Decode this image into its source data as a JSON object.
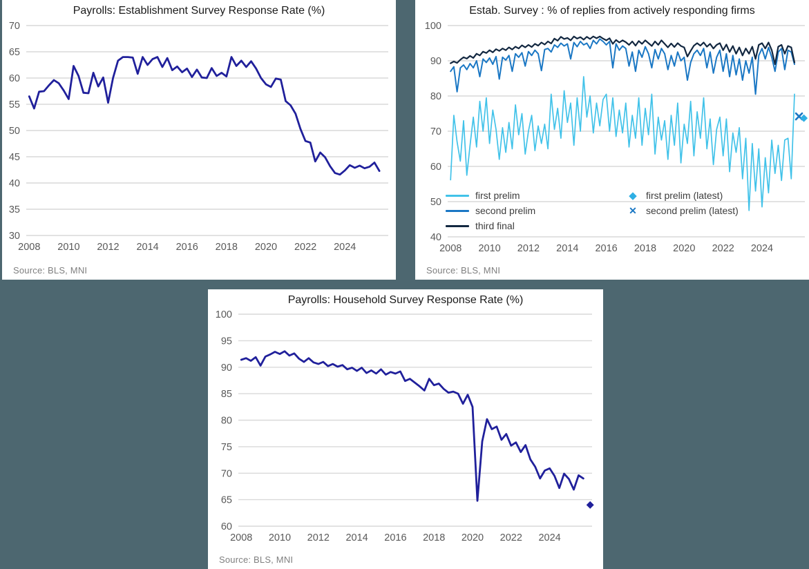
{
  "page": {
    "background_color": "#4d6770",
    "panel_color": "#ffffff"
  },
  "styles": {
    "grid_color": "#d9d9d9",
    "tick_color": "#595959",
    "title_color": "#1a1a1a",
    "source_color": "#7f7f7f",
    "legend_text_color": "#3d3d3d",
    "navy_line": "#20209b",
    "third_final_line": "#122740",
    "second_prelim_line": "#1a77c4",
    "first_prelim_line": "#41c2e9"
  },
  "chart_data": [
    {
      "id": "establishment-response-rate",
      "type": "line",
      "title": "Payrolls: Establishment Survey Response Rate (%)",
      "source": "Source: BLS, MNI",
      "xlabel": "",
      "ylabel": "",
      "grid": true,
      "ylim": [
        30,
        70
      ],
      "ytick_step": 5,
      "xlim": [
        2007.85,
        2026.2
      ],
      "xticks": [
        2008,
        2010,
        2012,
        2014,
        2016,
        2018,
        2020,
        2022,
        2024
      ],
      "x_start": 2008.0,
      "x_step": 0.25,
      "series": [
        {
          "name": "establishment survey response rate",
          "color": "#20209b",
          "line_width": 2.8,
          "values": [
            56.5,
            54.2,
            57.4,
            57.5,
            58.6,
            59.6,
            59.0,
            57.6,
            56.0,
            62.3,
            60.4,
            57.2,
            57.1,
            61.0,
            58.4,
            60.1,
            55.3,
            60.0,
            63.3,
            64.0,
            64.0,
            63.9,
            60.8,
            64.0,
            62.5,
            63.6,
            64.0,
            62.1,
            63.8,
            61.5,
            62.2,
            61.1,
            61.8,
            60.2,
            61.6,
            60.1,
            60.0,
            61.9,
            60.4,
            61.0,
            60.3,
            64.0,
            62.3,
            63.3,
            62.1,
            63.2,
            61.8,
            60.0,
            58.8,
            58.3,
            59.9,
            59.7,
            55.6,
            54.8,
            53.2,
            50.3,
            48.0,
            47.7,
            44.1,
            45.8,
            44.9,
            43.2,
            41.9,
            41.6,
            42.4,
            43.4,
            42.9,
            43.3,
            42.8,
            43.1,
            43.9,
            42.3
          ]
        }
      ],
      "markers": []
    },
    {
      "id": "replies-from-actively-responding-firms",
      "type": "line",
      "title": "Estab. Survey : % of replies from actively responding firms",
      "source": "Source: BLS, MNI",
      "xlabel": "",
      "ylabel": "",
      "grid": true,
      "legend_position": "bottom-left-two-columns",
      "ylim": [
        40,
        100
      ],
      "ytick_step": 10,
      "xlim": [
        2007.85,
        2026.2
      ],
      "xticks": [
        2008,
        2010,
        2012,
        2014,
        2016,
        2018,
        2020,
        2022,
        2024
      ],
      "x_start": 2008.0,
      "x_step": 0.1666667,
      "series": [
        {
          "name": "first prelim",
          "color": "#41c2e9",
          "line_width": 1.7,
          "values": [
            56.2,
            74.5,
            67.0,
            61.5,
            73.0,
            57.5,
            66.0,
            74.0,
            65.5,
            78.5,
            70.0,
            79.5,
            66.5,
            76.0,
            70.5,
            62.0,
            71.0,
            64.0,
            72.5,
            65.0,
            77.5,
            69.0,
            75.0,
            63.5,
            70.0,
            74.5,
            64.5,
            71.5,
            66.5,
            72.0,
            65.0,
            80.5,
            70.5,
            76.5,
            68.0,
            81.5,
            72.5,
            78.0,
            66.0,
            79.5,
            70.0,
            85.5,
            74.0,
            80.0,
            69.5,
            78.0,
            71.5,
            79.0,
            80.5,
            70.0,
            79.5,
            68.5,
            76.0,
            69.5,
            78.0,
            65.5,
            74.5,
            68.0,
            79.5,
            66.0,
            76.5,
            69.0,
            80.5,
            63.5,
            74.0,
            67.5,
            73.0,
            62.0,
            74.5,
            66.0,
            78.0,
            61.0,
            72.0,
            66.5,
            78.5,
            63.0,
            75.5,
            68.0,
            79.5,
            65.0,
            73.5,
            60.5,
            70.5,
            74.0,
            63.0,
            73.5,
            58.5,
            69.5,
            64.0,
            71.0,
            56.5,
            68.0,
            47.5,
            66.5,
            53.0,
            65.0,
            48.5,
            62.5,
            52.5,
            67.5,
            58.0,
            66.0,
            56.0,
            67.5,
            68.0,
            56.5,
            80.5
          ]
        },
        {
          "name": "second prelim",
          "color": "#1a77c4",
          "line_width": 2.0,
          "values": [
            87.0,
            88.3,
            81.2,
            88.0,
            88.8,
            87.5,
            89.2,
            88.0,
            90.0,
            85.5,
            90.5,
            89.5,
            90.8,
            89.0,
            91.2,
            84.8,
            91.0,
            90.2,
            91.5,
            87.0,
            92.0,
            91.0,
            92.3,
            88.5,
            92.6,
            91.5,
            93.0,
            92.0,
            87.2,
            93.2,
            93.5,
            92.5,
            94.5,
            93.8,
            95.0,
            94.2,
            94.8,
            90.5,
            95.2,
            94.0,
            95.5,
            94.5,
            95.0,
            93.5,
            95.8,
            94.8,
            96.2,
            95.5,
            94.5,
            95.5,
            88.0,
            94.8,
            93.0,
            94.2,
            93.5,
            88.5,
            92.5,
            87.0,
            93.0,
            91.0,
            94.0,
            92.0,
            88.0,
            93.2,
            90.5,
            93.5,
            92.0,
            87.5,
            91.5,
            88.5,
            92.5,
            90.0,
            91.0,
            84.5,
            89.5,
            92.0,
            93.0,
            91.5,
            93.5,
            88.0,
            92.5,
            86.5,
            91.0,
            93.0,
            87.0,
            92.0,
            85.5,
            91.5,
            86.0,
            90.5,
            84.5,
            90.0,
            86.5,
            91.0,
            80.5,
            91.5,
            93.5,
            90.5,
            93.8,
            91.0,
            87.0,
            92.5,
            93.5,
            87.5,
            93.0,
            92.5,
            89.0
          ]
        },
        {
          "name": "third final",
          "color": "#122740",
          "line_width": 2.2,
          "values": [
            89.3,
            89.8,
            89.4,
            90.3,
            91.0,
            90.6,
            91.4,
            90.8,
            92.0,
            91.5,
            92.6,
            92.2,
            93.0,
            92.4,
            93.3,
            92.8,
            93.5,
            93.0,
            93.8,
            93.2,
            94.0,
            93.5,
            94.4,
            93.8,
            94.5,
            93.9,
            94.8,
            94.3,
            95.2,
            94.6,
            95.5,
            94.9,
            96.3,
            95.7,
            96.8,
            96.2,
            96.5,
            95.8,
            96.9,
            96.3,
            96.7,
            96.0,
            96.8,
            96.2,
            96.9,
            96.4,
            96.9,
            96.3,
            95.8,
            96.4,
            94.8,
            95.9,
            95.2,
            95.8,
            95.3,
            94.5,
            95.5,
            94.3,
            95.6,
            94.8,
            95.8,
            95.0,
            94.2,
            95.5,
            94.5,
            95.8,
            94.8,
            93.8,
            94.9,
            93.9,
            95.0,
            94.2,
            93.8,
            91.2,
            92.8,
            94.3,
            95.0,
            94.3,
            95.2,
            94.0,
            94.8,
            93.5,
            94.5,
            95.0,
            93.0,
            94.6,
            92.5,
            94.2,
            92.0,
            93.8,
            91.5,
            93.5,
            92.0,
            94.0,
            90.5,
            94.5,
            95.0,
            93.5,
            95.2,
            93.0,
            89.0,
            94.0,
            94.5,
            92.0,
            94.2,
            93.8,
            89.5
          ]
        }
      ],
      "markers": [
        {
          "name": "second prelim (latest)",
          "shape": "x",
          "color": "#1a77c4",
          "x": 2025.9,
          "y": 74.2
        },
        {
          "name": "first prelim (latest)",
          "shape": "diamond",
          "color": "#2fafe4",
          "x": 2026.15,
          "y": 73.7
        }
      ],
      "legend": [
        {
          "label": "first prelim",
          "marker": "line",
          "color": "#41c2e9"
        },
        {
          "label": "second prelim",
          "marker": "line",
          "color": "#1a77c4"
        },
        {
          "label": "third final",
          "marker": "line",
          "color": "#122740"
        },
        {
          "label": "first prelim (latest)",
          "marker": "diamond",
          "color": "#2fafe4"
        },
        {
          "label": "second prelim (latest)",
          "marker": "x",
          "color": "#1a77c4"
        }
      ]
    },
    {
      "id": "household-response-rate",
      "type": "line",
      "title": "Payrolls: Household Survey Response Rate (%)",
      "source": "Source: BLS, MNI",
      "xlabel": "",
      "ylabel": "",
      "grid": true,
      "ylim": [
        60,
        100
      ],
      "ytick_step": 5,
      "xlim": [
        2007.85,
        2026.2
      ],
      "xticks": [
        2008,
        2010,
        2012,
        2014,
        2016,
        2018,
        2020,
        2022,
        2024
      ],
      "x_start": 2008.0,
      "x_step": 0.25,
      "series": [
        {
          "name": "household survey response rate",
          "color": "#20209b",
          "line_width": 2.8,
          "values": [
            91.4,
            91.7,
            91.2,
            91.9,
            90.3,
            92.0,
            92.4,
            92.9,
            92.5,
            93.0,
            92.2,
            92.6,
            91.6,
            91.0,
            91.7,
            90.9,
            90.6,
            91.0,
            90.2,
            90.6,
            90.1,
            90.4,
            89.6,
            89.9,
            89.3,
            89.9,
            88.9,
            89.4,
            88.8,
            89.6,
            88.6,
            89.1,
            88.8,
            89.2,
            87.4,
            87.8,
            87.1,
            86.4,
            85.6,
            87.8,
            86.6,
            86.9,
            85.9,
            85.2,
            85.4,
            85.0,
            83.1,
            84.8,
            82.5,
            64.8,
            76.0,
            80.2,
            78.3,
            78.8,
            76.3,
            77.4,
            75.2,
            75.8,
            74.0,
            75.3,
            72.6,
            71.2,
            69.0,
            70.5,
            70.9,
            69.5,
            67.2,
            69.9,
            68.9,
            66.9,
            69.6,
            69.0
          ]
        }
      ],
      "markers": [
        {
          "name": "latest",
          "shape": "diamond",
          "color": "#20209b",
          "x": 2026.1,
          "y": 64.0
        }
      ]
    }
  ]
}
